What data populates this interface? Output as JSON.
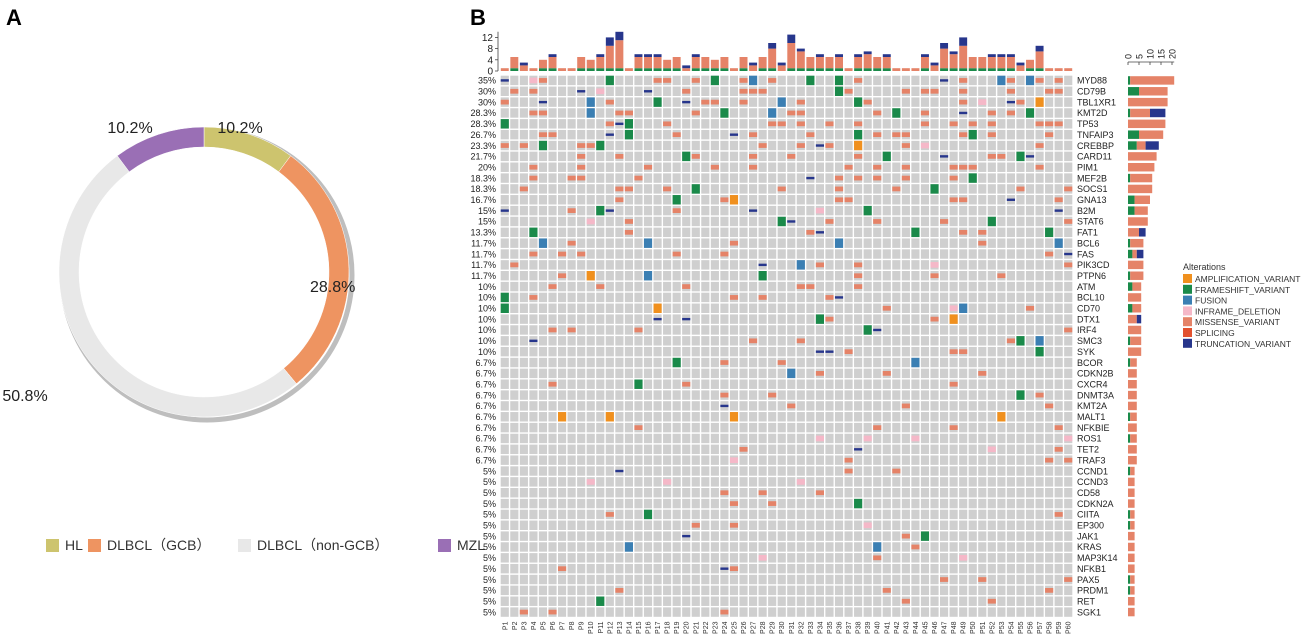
{
  "panel_labels": {
    "a": "A",
    "b": "B"
  },
  "colors": {
    "HL": "#cdc46e",
    "GCB": "#ee9461",
    "nonGCB": "#e8e8e8",
    "MZL": "#9a6fb5",
    "cell_bg": "#cfcfcf",
    "AMPLIFICATION_VARIANT": "#f0901e",
    "FRAMESHIFT_VARIANT": "#1a8a4a",
    "FUSION": "#3b7fb3",
    "INFRAME_DELETION": "#f5b8c8",
    "MISSENSE_VARIANT": "#e58368",
    "SPLICING": "#e2512f",
    "TRUNCATION_VARIANT": "#27368c"
  },
  "chart_data": [
    {
      "type": "pie",
      "variant": "donut",
      "title": "",
      "slices": [
        {
          "key": "HL",
          "label": "HL",
          "value": 10.2,
          "text": "10.2%"
        },
        {
          "key": "GCB",
          "label": "DLBCL（GCB）",
          "value": 28.8,
          "text": "28.8%"
        },
        {
          "key": "nonGCB",
          "label": "DLBCL（non-GCB）",
          "value": 50.8,
          "text": "50.8%"
        },
        {
          "key": "MZL",
          "label": "MZL",
          "value": 10.2,
          "text": "10.2%"
        }
      ]
    },
    {
      "type": "heatmap",
      "subtype": "oncoprint",
      "legend_title": "Alterations",
      "legend": [
        "AMPLIFICATION_VARIANT",
        "FRAMESHIFT_VARIANT",
        "FUSION",
        "INFRAME_DELETION",
        "MISSENSE_VARIANT",
        "SPLICING",
        "TRUNCATION_VARIANT"
      ],
      "top_axis_ticks": [
        "0",
        "4",
        "8",
        "12"
      ],
      "top_axis_range": [
        0,
        14
      ],
      "right_axis_ticks": [
        "0",
        "5",
        "10",
        "15",
        "20"
      ],
      "right_axis_range": [
        0,
        21
      ],
      "samples": [
        "P1",
        "P2",
        "P3",
        "P4",
        "P5",
        "P6",
        "P7",
        "P8",
        "P9",
        "P10",
        "P11",
        "P12",
        "P13",
        "P14",
        "P15",
        "P16",
        "P17",
        "P18",
        "P19",
        "P20",
        "P21",
        "P22",
        "P23",
        "P24",
        "P25",
        "P26",
        "P27",
        "P28",
        "P29",
        "P30",
        "P31",
        "P32",
        "P33",
        "P34",
        "P35",
        "P36",
        "P37",
        "P38",
        "P39",
        "P40",
        "P41",
        "P42",
        "P43",
        "P44",
        "P45",
        "P46",
        "P47",
        "P48",
        "P49",
        "P50",
        "P51",
        "P52",
        "P53",
        "P54",
        "P55",
        "P56",
        "P57",
        "P58",
        "P59",
        "P60"
      ],
      "genes": [
        "MYD88",
        "CD79B",
        "TBL1XR1",
        "KMT2D",
        "TP53",
        "TNFAIP3",
        "CREBBP",
        "CARD11",
        "PIM1",
        "MEF2B",
        "SOCS1",
        "GNA13",
        "B2M",
        "STAT6",
        "FAT1",
        "BCL6",
        "FAS",
        "PIK3CD",
        "PTPN6",
        "ATM",
        "BCL10",
        "CD70",
        "DTX1",
        "IRF4",
        "SMC3",
        "SYK",
        "BCOR",
        "CDKN2B",
        "CXCR4",
        "DNMT3A",
        "KMT2A",
        "MALT1",
        "NFKBIE",
        "ROS1",
        "TET2",
        "TRAF3",
        "CCND1",
        "CCND3",
        "CD58",
        "CDKN2A",
        "CIITA",
        "EP300",
        "JAK1",
        "KRAS",
        "MAP3K14",
        "NFKB1",
        "PAX5",
        "PRDM1",
        "RET",
        "SGK1"
      ],
      "percents": [
        "35%",
        "30%",
        "30%",
        "28.3%",
        "28.3%",
        "26.7%",
        "23.3%",
        "21.7%",
        "20%",
        "18.3%",
        "18.3%",
        "16.7%",
        "15%",
        "15%",
        "13.3%",
        "11.7%",
        "11.7%",
        "11.7%",
        "11.7%",
        "10%",
        "10%",
        "10%",
        "10%",
        "10%",
        "10%",
        "10%",
        "6.7%",
        "6.7%",
        "6.7%",
        "6.7%",
        "6.7%",
        "6.7%",
        "6.7%",
        "6.7%",
        "6.7%",
        "6.7%",
        "5%",
        "5%",
        "5%",
        "5%",
        "5%",
        "5%",
        "5%",
        "5%",
        "5%",
        "5%",
        "5%",
        "5%",
        "5%",
        "5%"
      ],
      "gene_totals": [
        21,
        18,
        18,
        17,
        17,
        16,
        14,
        13,
        12,
        11,
        11,
        10,
        9,
        9,
        8,
        7,
        7,
        7,
        7,
        6,
        6,
        6,
        6,
        6,
        6,
        6,
        4,
        4,
        4,
        4,
        4,
        4,
        4,
        4,
        4,
        4,
        3,
        3,
        3,
        3,
        3,
        3,
        3,
        3,
        3,
        3,
        3,
        3,
        3,
        3
      ],
      "sample_totals": [
        1,
        5,
        3,
        1,
        4,
        6,
        1,
        1,
        5,
        4,
        6,
        12,
        14,
        1,
        6,
        6,
        6,
        4,
        5,
        2,
        6,
        5,
        4,
        5,
        1,
        5,
        3,
        5,
        10,
        3,
        13,
        8,
        5,
        6,
        5,
        6,
        1,
        6,
        7,
        5,
        6,
        1,
        1,
        1,
        6,
        3,
        10,
        7,
        12,
        5,
        5,
        6,
        6,
        6,
        3,
        4,
        9,
        1,
        1,
        1
      ]
    }
  ]
}
